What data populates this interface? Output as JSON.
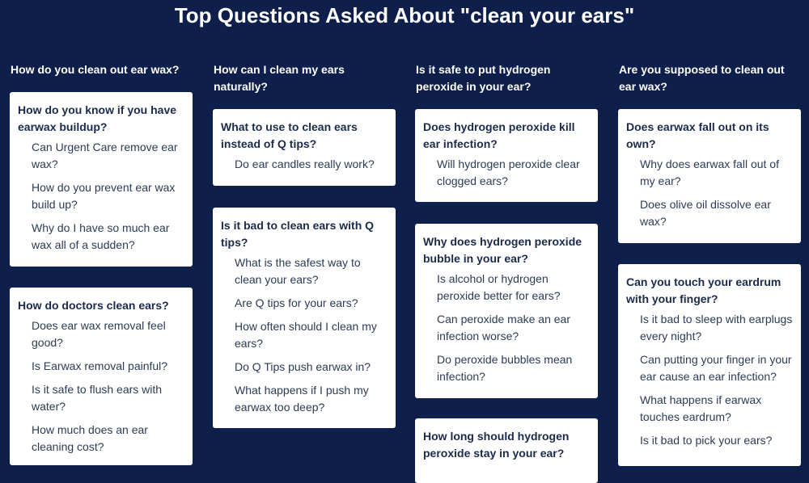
{
  "title": "Top Questions Asked About \"clean your ears\"",
  "columns": [
    {
      "heading": "How do you clean out ear wax?",
      "cards": [
        {
          "title": "How do you know if you have earwax buildup?",
          "items": [
            "Can Urgent Care remove ear wax?",
            "How do you prevent ear wax build up?",
            "Why do I have so much ear wax all of a sudden?"
          ]
        },
        {
          "title": "How do doctors clean ears?",
          "items": [
            "Does ear wax removal feel good?",
            "Is Earwax removal painful?",
            "Is it safe to flush ears with water?",
            "How much does an ear cleaning cost?"
          ]
        }
      ]
    },
    {
      "heading": "How can I clean my ears naturally?",
      "cards": [
        {
          "title": "What to use to clean ears instead of Q tips?",
          "items": [
            "Do ear candles really work?"
          ]
        },
        {
          "title": "Is it bad to clean ears with Q tips?",
          "items": [
            "What is the safest way to clean your ears?",
            "Are Q tips for your ears?",
            "How often should I clean my ears?",
            "Do Q Tips push earwax in?",
            "What happens if I push my earwax too deep?"
          ]
        }
      ]
    },
    {
      "heading": "Is it safe to put hydrogen peroxide in your ear?",
      "cards": [
        {
          "title": "Does hydrogen peroxide kill ear infection?",
          "items": [
            "Will hydrogen peroxide clear clogged ears?"
          ]
        },
        {
          "title": "Why does hydrogen peroxide bubble in your ear?",
          "items": [
            "Is alcohol or hydrogen peroxide better for ears?",
            "Can peroxide make an ear infection worse?",
            "Do peroxide bubbles mean infection?"
          ]
        },
        {
          "title": "How long should hydrogen peroxide stay in your ear?",
          "items": []
        }
      ]
    },
    {
      "heading": "Are you supposed to clean out ear wax?",
      "cards": [
        {
          "title": "Does earwax fall out on its own?",
          "items": [
            "Why does earwax fall out of my ear?",
            "Does olive oil dissolve ear wax?"
          ]
        },
        {
          "title": "Can you touch your eardrum with your finger?",
          "items": [
            "Is it bad to sleep with earplugs every night?",
            "Can putting your finger in your ear cause an ear infection?",
            "What happens if earwax touches eardrum?",
            "Is it bad to pick your ears?"
          ]
        }
      ]
    }
  ]
}
